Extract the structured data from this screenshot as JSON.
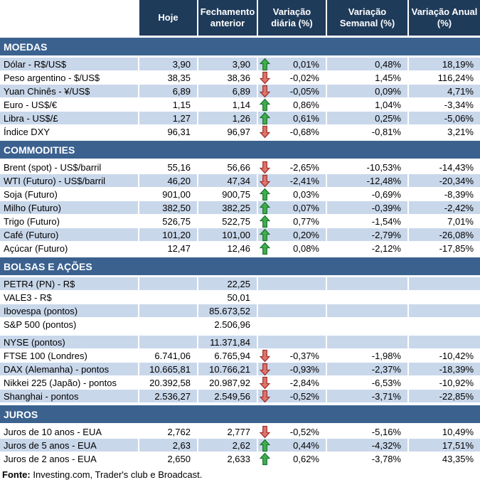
{
  "colors": {
    "header_bg": "#1F3B5A",
    "section_bg": "#3B618F",
    "shade_bg": "#C9D7EA",
    "arrow_up_fill": "#3FAE4C",
    "arrow_up_stroke": "#1C7430",
    "arrow_down_fill": "#E0746B",
    "arrow_down_stroke": "#9B332B"
  },
  "header": {
    "columns": [
      "Hoje",
      "Fechamento anterior",
      "Variação diária (%)",
      "Variação Semanal (%)",
      "Variação Anual (%)"
    ]
  },
  "sections": [
    {
      "id": "moedas",
      "title": "MOEDAS",
      "rows": [
        {
          "label": "Dólar - R$/US$",
          "hoje": "3,90",
          "fechamento": "3,90",
          "arrow": "up",
          "diaria": "0,01%",
          "semanal": "0,48%",
          "anual": "18,19%",
          "shade": true
        },
        {
          "label": "Peso argentino - $/US$",
          "hoje": "38,35",
          "fechamento": "38,36",
          "arrow": "down",
          "diaria": "-0,02%",
          "semanal": "1,45%",
          "anual": "116,24%",
          "shade": false
        },
        {
          "label": "Yuan Chinês - ¥/US$",
          "hoje": "6,89",
          "fechamento": "6,89",
          "arrow": "down",
          "diaria": "-0,05%",
          "semanal": "0,09%",
          "anual": "4,71%",
          "shade": true
        },
        {
          "label": "Euro - US$/€",
          "hoje": "1,15",
          "fechamento": "1,14",
          "arrow": "up",
          "diaria": "0,86%",
          "semanal": "1,04%",
          "anual": "-3,34%",
          "shade": false
        },
        {
          "label": "Libra - US$/£",
          "hoje": "1,27",
          "fechamento": "1,26",
          "arrow": "up",
          "diaria": "0,61%",
          "semanal": "0,25%",
          "anual": "-5,06%",
          "shade": true
        },
        {
          "label": "Índice DXY",
          "hoje": "96,31",
          "fechamento": "96,97",
          "arrow": "down",
          "diaria": "-0,68%",
          "semanal": "-0,81%",
          "anual": "3,21%",
          "shade": false
        }
      ]
    },
    {
      "id": "commodities",
      "title": "COMMODITIES",
      "rows": [
        {
          "label": "Brent (spot) - US$/barril",
          "hoje": "55,16",
          "fechamento": "56,66",
          "arrow": "down",
          "diaria": "-2,65%",
          "semanal": "-10,53%",
          "anual": "-14,43%",
          "shade": false
        },
        {
          "label": "WTI (Futuro) - US$/barril",
          "hoje": "46,20",
          "fechamento": "47,34",
          "arrow": "down",
          "diaria": "-2,41%",
          "semanal": "-12,48%",
          "anual": "-20,34%",
          "shade": true
        },
        {
          "label": "Soja (Futuro)",
          "hoje": "901,00",
          "fechamento": "900,75",
          "arrow": "up",
          "diaria": "0,03%",
          "semanal": "-0,69%",
          "anual": "-8,39%",
          "shade": false
        },
        {
          "label": "Milho (Futuro)",
          "hoje": "382,50",
          "fechamento": "382,25",
          "arrow": "up",
          "diaria": "0,07%",
          "semanal": "-0,39%",
          "anual": "-2,42%",
          "shade": true
        },
        {
          "label": "Trigo (Futuro)",
          "hoje": "526,75",
          "fechamento": "522,75",
          "arrow": "up",
          "diaria": "0,77%",
          "semanal": "-1,54%",
          "anual": "7,01%",
          "shade": false
        },
        {
          "label": "Café (Futuro)",
          "hoje": "101,20",
          "fechamento": "101,00",
          "arrow": "up",
          "diaria": "0,20%",
          "semanal": "-2,79%",
          "anual": "-26,08%",
          "shade": true
        },
        {
          "label": "Açúcar (Futuro)",
          "hoje": "12,47",
          "fechamento": "12,46",
          "arrow": "up",
          "diaria": "0,08%",
          "semanal": "-2,12%",
          "anual": "-17,85%",
          "shade": false
        }
      ]
    },
    {
      "id": "bolsas-e-acoes",
      "title": "BOLSAS E AÇÕES",
      "rows": [
        {
          "label": "PETR4 (PN) - R$",
          "hoje": "",
          "fechamento": "22,25",
          "arrow": "",
          "diaria": "",
          "semanal": "",
          "anual": "",
          "shade": true
        },
        {
          "label": "VALE3 - R$",
          "hoje": "",
          "fechamento": "50,01",
          "arrow": "",
          "diaria": "",
          "semanal": "",
          "anual": "",
          "shade": false
        },
        {
          "label": "Ibovespa (pontos)",
          "hoje": "",
          "fechamento": "85.673,52",
          "arrow": "",
          "diaria": "",
          "semanal": "",
          "anual": "",
          "shade": true
        },
        {
          "label": "S&P 500 (pontos)",
          "hoje": "",
          "fechamento": "2.506,96",
          "arrow": "",
          "diaria": "",
          "semanal": "",
          "anual": "",
          "shade": false,
          "gap_after": true
        },
        {
          "label": "NYSE (pontos)",
          "hoje": "",
          "fechamento": "11.371,84",
          "arrow": "",
          "diaria": "",
          "semanal": "",
          "anual": "",
          "shade": true
        },
        {
          "label": "FTSE 100 (Londres)",
          "hoje": "6.741,06",
          "fechamento": "6.765,94",
          "arrow": "down",
          "diaria": "-0,37%",
          "semanal": "-1,98%",
          "anual": "-10,42%",
          "shade": false
        },
        {
          "label": "DAX (Alemanha) - pontos",
          "hoje": "10.665,81",
          "fechamento": "10.766,21",
          "arrow": "down",
          "diaria": "-0,93%",
          "semanal": "-2,37%",
          "anual": "-18,39%",
          "shade": true
        },
        {
          "label": "Nikkei 225 (Japão) - pontos",
          "hoje": "20.392,58",
          "fechamento": "20.987,92",
          "arrow": "down",
          "diaria": "-2,84%",
          "semanal": "-6,53%",
          "anual": "-10,92%",
          "shade": false
        },
        {
          "label": "Shanghai - pontos",
          "hoje": "2.536,27",
          "fechamento": "2.549,56",
          "arrow": "down",
          "diaria": "-0,52%",
          "semanal": "-3,71%",
          "anual": "-22,85%",
          "shade": true
        }
      ]
    },
    {
      "id": "juros",
      "title": "JUROS",
      "rows": [
        {
          "label": "Juros de 10 anos - EUA",
          "hoje": "2,762",
          "fechamento": "2,777",
          "arrow": "down",
          "diaria": "-0,52%",
          "semanal": "-5,16%",
          "anual": "10,49%",
          "shade": false
        },
        {
          "label": "Juros de 5 anos - EUA",
          "hoje": "2,63",
          "fechamento": "2,62",
          "arrow": "up",
          "diaria": "0,44%",
          "semanal": "-4,32%",
          "anual": "17,51%",
          "shade": true
        },
        {
          "label": "Juros de 2 anos - EUA",
          "hoje": "2,650",
          "fechamento": "2,633",
          "arrow": "up",
          "diaria": "0,62%",
          "semanal": "-3,78%",
          "anual": "43,35%",
          "shade": false
        }
      ]
    }
  ],
  "footer": {
    "label": "Fonte:",
    "text": " Investing.com, Trader's club e Broadcast."
  }
}
